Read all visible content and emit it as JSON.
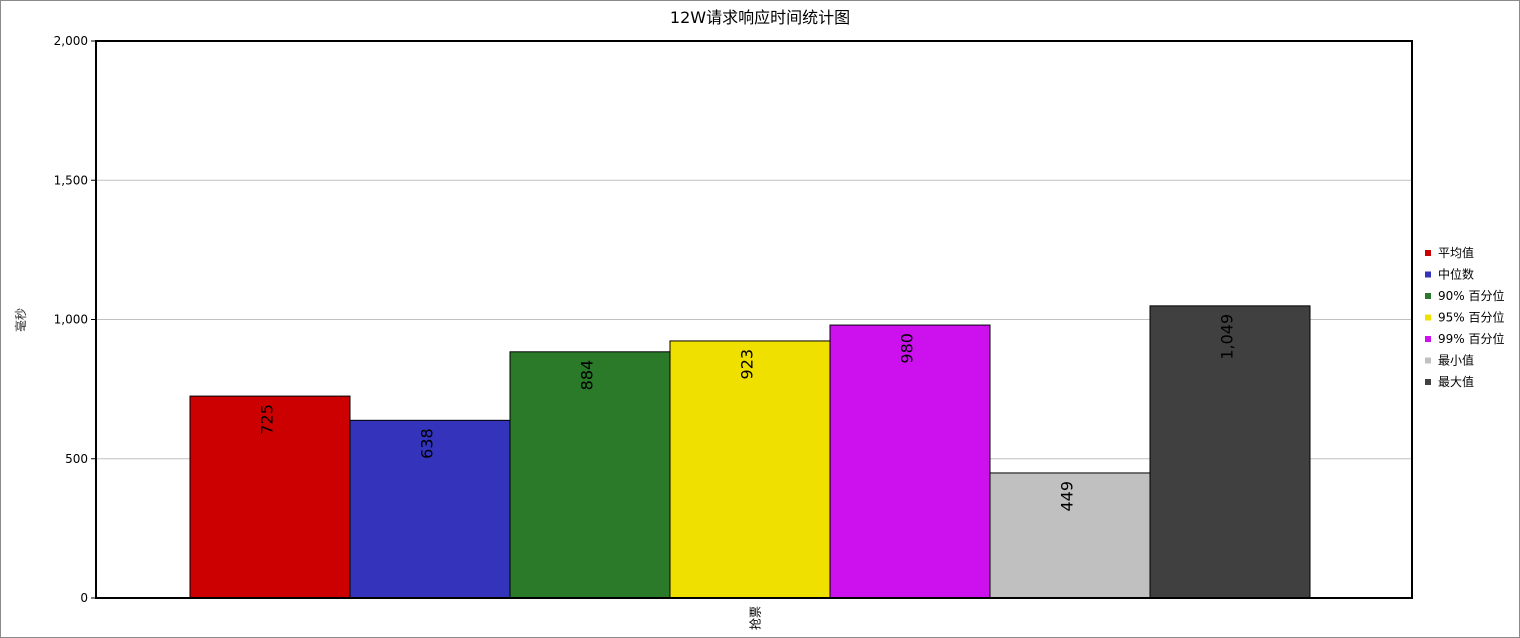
{
  "chart_data": {
    "type": "bar",
    "title": "12W请求响应时间统计图",
    "xlabel": "",
    "ylabel": "毫秒",
    "categories": [
      "抢票"
    ],
    "ylim": [
      0,
      2000
    ],
    "yticks": [
      "0",
      "500",
      "1,000",
      "1,500",
      "2,000"
    ],
    "ytick_values": [
      0,
      500,
      1000,
      1500,
      2000
    ],
    "grid": true,
    "legend_position": "right",
    "series": [
      {
        "name": "平均值",
        "values": [
          725
        ],
        "label": "725",
        "color": "#cc0000"
      },
      {
        "name": "中位数",
        "values": [
          638
        ],
        "label": "638",
        "color": "#3333bb"
      },
      {
        "name": "90% 百分位",
        "values": [
          884
        ],
        "label": "884",
        "color": "#2a7a2a"
      },
      {
        "name": "95% 百分位",
        "values": [
          923
        ],
        "label": "923",
        "color": "#f0e000"
      },
      {
        "name": "99% 百分位",
        "values": [
          980
        ],
        "label": "980",
        "color": "#cc11ee"
      },
      {
        "name": "最小值",
        "values": [
          449
        ],
        "label": "449",
        "color": "#c0c0c0"
      },
      {
        "name": "最大值",
        "values": [
          1049
        ],
        "label": "1,049",
        "color": "#404040"
      }
    ]
  }
}
